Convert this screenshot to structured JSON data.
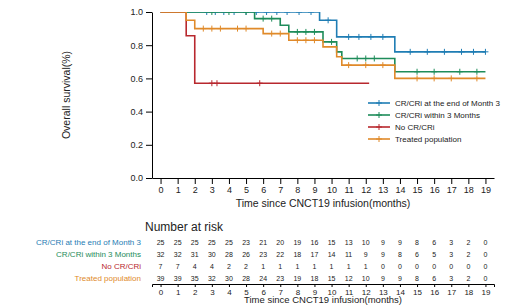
{
  "chart_data": {
    "type": "line",
    "x_label": "Time since CNCT19 infusion(months)",
    "y_label": "Overall survival(%)",
    "xlim": [
      -0.5,
      19.5
    ],
    "xticks": [
      0,
      1,
      2,
      3,
      4,
      5,
      6,
      7,
      8,
      9,
      10,
      11,
      12,
      13,
      14,
      15,
      16,
      17,
      18,
      19
    ],
    "ylim": [
      0,
      1
    ],
    "yticks": [
      {
        "value": 0,
        "label": "0.0"
      },
      0.2,
      0.4,
      0.6,
      0.8,
      {
        "value": 1,
        "label": "1.0"
      }
    ],
    "grid": false,
    "legend": "lower right",
    "line_style": "step",
    "series": [
      {
        "name": "CR/CRi at the end of Month 3",
        "color": "#1f7db4",
        "marker": "plus",
        "x": [
          0,
          9.3,
          10.3,
          13.7,
          19
        ],
        "values": [
          1,
          0.95,
          0.85,
          0.76,
          0.76
        ],
        "censor_x": [
          2.7,
          3.2,
          3.7,
          4.3,
          5,
          5.6,
          6.2,
          6.8,
          7.4,
          8.1,
          8.8,
          9.8,
          11,
          11.6,
          12.3,
          13,
          14.6,
          15.6,
          16.6,
          17.6,
          18.3,
          19
        ],
        "censor_values": [
          1,
          1,
          1,
          1,
          1,
          1,
          1,
          1,
          1,
          1,
          1,
          0.95,
          0.85,
          0.85,
          0.85,
          0.85,
          0.76,
          0.76,
          0.76,
          0.76,
          0.76,
          0.76
        ]
      },
      {
        "name": "CR/CRi within 3 Months",
        "color": "#1e8c5a",
        "marker": "plus",
        "x": [
          0,
          5.5,
          7,
          7.5,
          9.5,
          10.3,
          10.6,
          13.7,
          19
        ],
        "values": [
          1,
          0.96,
          0.92,
          0.88,
          0.82,
          0.76,
          0.72,
          0.64,
          0.64
        ],
        "censor_x": [
          3,
          4,
          5,
          6,
          6.5,
          8,
          8.5,
          9,
          10,
          11.5,
          12,
          12.5,
          15,
          16,
          17.5,
          18.5
        ],
        "censor_values": [
          1,
          1,
          1,
          0.96,
          0.96,
          0.88,
          0.88,
          0.88,
          0.82,
          0.72,
          0.72,
          0.72,
          0.64,
          0.64,
          0.64,
          0.64
        ]
      },
      {
        "name": "No CR/CRi",
        "color": "#b8282e",
        "marker": "plus",
        "x": [
          0,
          1.5,
          2,
          12.2
        ],
        "values": [
          1,
          0.857,
          0.571,
          0.571
        ],
        "censor_x": [
          3,
          3.3,
          5.8
        ],
        "censor_values": [
          0.571,
          0.571,
          0.571
        ]
      },
      {
        "name": "Treated population",
        "color": "#e08a2a",
        "marker": "plus",
        "x": [
          0,
          1.5,
          2,
          6,
          7.5,
          9.5,
          10.3,
          10.6,
          13.7,
          19
        ],
        "values": [
          1,
          0.95,
          0.9,
          0.87,
          0.83,
          0.79,
          0.73,
          0.68,
          0.6,
          0.6
        ],
        "censor_x": [
          2.5,
          3,
          3.5,
          4.5,
          5,
          6.5,
          7,
          8,
          8.5,
          9,
          11,
          12,
          13,
          15,
          16,
          17,
          18.5
        ],
        "censor_values": [
          0.9,
          0.9,
          0.9,
          0.9,
          0.9,
          0.87,
          0.87,
          0.83,
          0.83,
          0.83,
          0.68,
          0.68,
          0.68,
          0.6,
          0.6,
          0.6,
          0.6
        ]
      }
    ],
    "risk_table": {
      "title": "Number at risk",
      "x_label": "Time since CNCT19 infusion(months)",
      "times": [
        0,
        1,
        2,
        3,
        4,
        5,
        6,
        7,
        8,
        9,
        10,
        11,
        12,
        13,
        14,
        15,
        16,
        17,
        18,
        19
      ],
      "rows": [
        {
          "name": "CR/CRi at the end of Month 3",
          "color": "#1f7db4",
          "values": [
            25,
            25,
            25,
            25,
            25,
            23,
            21,
            20,
            19,
            16,
            15,
            13,
            10,
            9,
            9,
            8,
            6,
            3,
            2,
            0
          ]
        },
        {
          "name": "CR/CRi within 3 Months",
          "color": "#1e8c5a",
          "values": [
            32,
            32,
            31,
            30,
            28,
            26,
            23,
            22,
            18,
            17,
            14,
            11,
            9,
            9,
            8,
            6,
            5,
            3,
            2,
            0
          ]
        },
        {
          "name": "No CR/CRi",
          "color": "#b8282e",
          "values": [
            7,
            7,
            4,
            4,
            2,
            2,
            1,
            1,
            1,
            1,
            1,
            1,
            1,
            0,
            0,
            0,
            0,
            0,
            0,
            0
          ]
        },
        {
          "name": "Treated population",
          "color": "#e08a2a",
          "values": [
            39,
            39,
            35,
            32,
            30,
            28,
            24,
            23,
            19,
            18,
            15,
            12,
            10,
            9,
            9,
            8,
            6,
            3,
            2,
            0
          ]
        }
      ]
    }
  }
}
